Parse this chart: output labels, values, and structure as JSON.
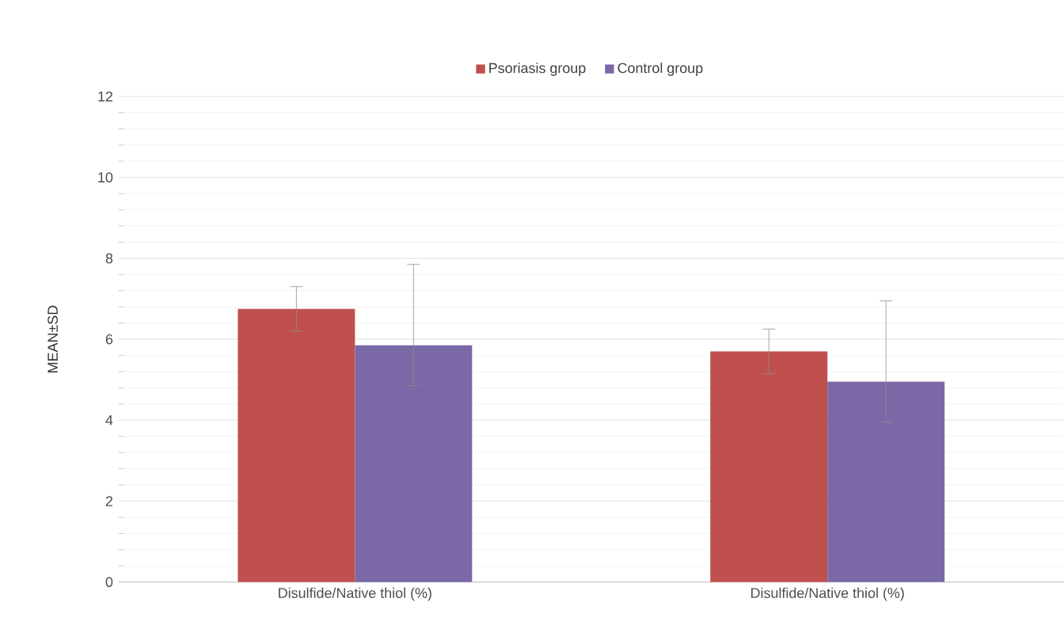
{
  "chart_data": {
    "type": "bar",
    "ylabel": "MEAN±SD",
    "categories": [
      "Disulfide/Native thiol (%)",
      "Disulfide/Native thiol (%)"
    ],
    "series": [
      {
        "name": "Psoriasis group",
        "color": "#c0504d",
        "values": [
          6.75,
          5.7
        ],
        "errors": [
          0.55,
          0.55
        ]
      },
      {
        "name": "Control group",
        "color": "#7b68a6",
        "values": [
          5.85,
          4.95
        ],
        "errors": [
          [
            4.85,
            7.85
          ],
          [
            3.95,
            6.95
          ]
        ]
      }
    ],
    "ylim": [
      0,
      12
    ],
    "yticks": [
      0,
      2,
      4,
      6,
      8,
      10,
      12
    ],
    "grid": "y",
    "legend": "top"
  }
}
